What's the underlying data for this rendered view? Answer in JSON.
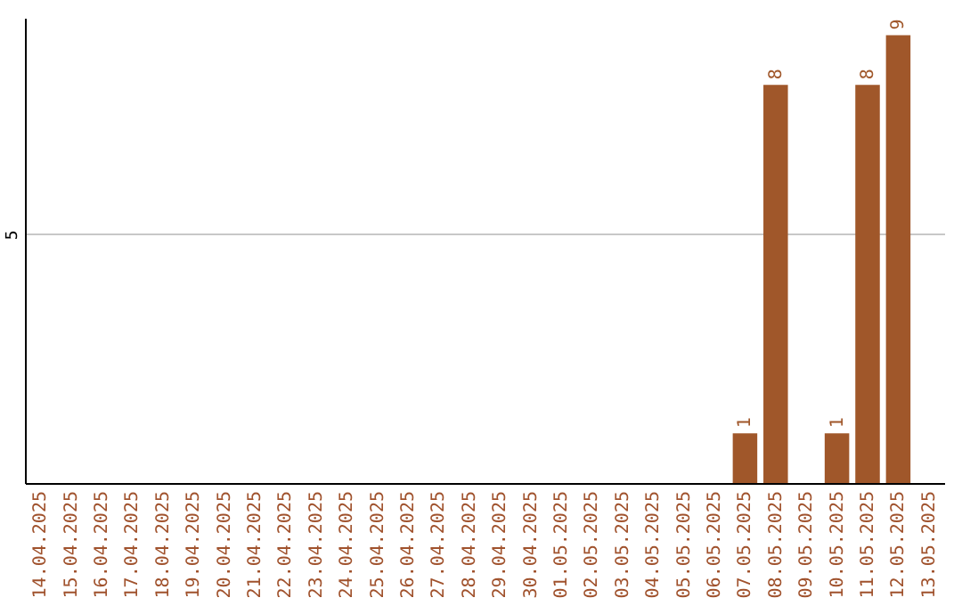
{
  "chart_data": {
    "type": "bar",
    "categories": [
      "14.04.2025",
      "15.04.2025",
      "16.04.2025",
      "17.04.2025",
      "18.04.2025",
      "19.04.2025",
      "20.04.2025",
      "21.04.2025",
      "22.04.2025",
      "23.04.2025",
      "24.04.2025",
      "25.04.2025",
      "26.04.2025",
      "27.04.2025",
      "28.04.2025",
      "29.04.2025",
      "30.04.2025",
      "01.05.2025",
      "02.05.2025",
      "03.05.2025",
      "04.05.2025",
      "05.05.2025",
      "06.05.2025",
      "07.05.2025",
      "08.05.2025",
      "09.05.2025",
      "10.05.2025",
      "11.05.2025",
      "12.05.2025",
      "13.05.2025"
    ],
    "values": [
      null,
      null,
      null,
      null,
      null,
      null,
      null,
      null,
      null,
      null,
      null,
      null,
      null,
      null,
      null,
      null,
      null,
      null,
      null,
      null,
      null,
      null,
      null,
      1,
      8,
      null,
      1,
      8,
      9,
      null
    ],
    "color": "#a0572a",
    "ylim": [
      0,
      9.35
    ],
    "yticks": [
      5
    ],
    "grid": "y",
    "data_labels": true
  }
}
